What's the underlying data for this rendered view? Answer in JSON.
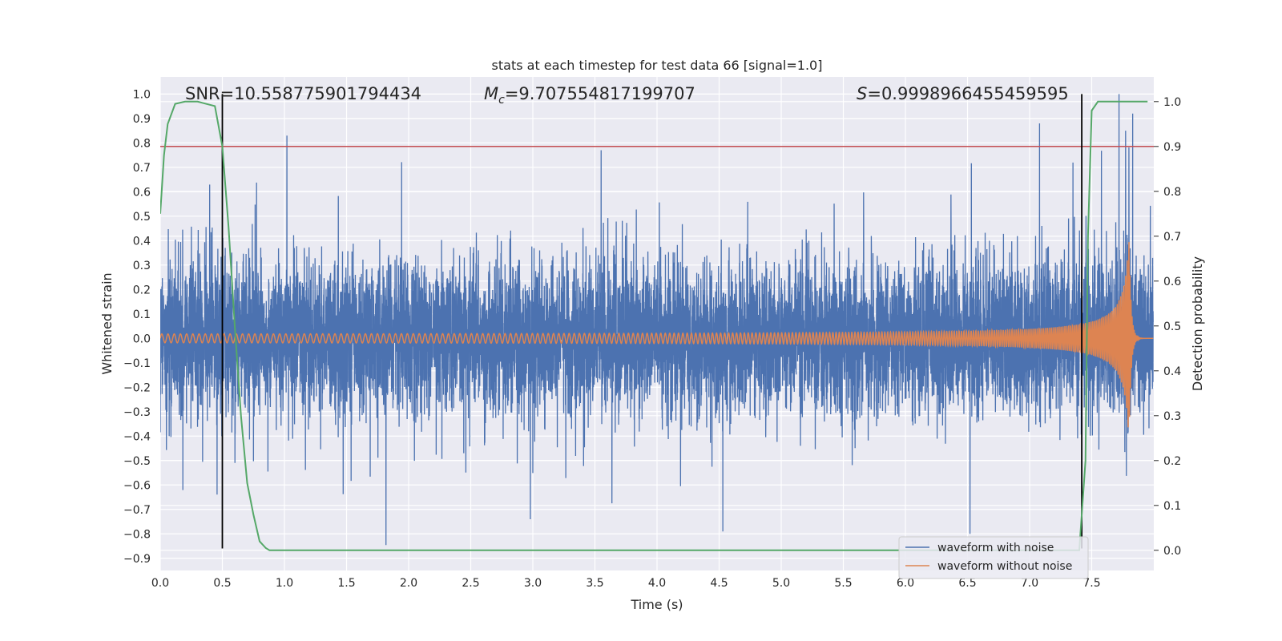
{
  "chart_data": {
    "type": "line",
    "title": "stats at each timestep for test data 66 [signal=1.0]",
    "xlabel": "Time (s)",
    "ylabel_left": "Whitened strain",
    "ylabel_right": "Detection probability",
    "xlim": [
      0.0,
      8.0
    ],
    "ylim_left": [
      -0.95,
      1.07
    ],
    "ylim_right": [
      -0.045,
      1.055
    ],
    "x_ticks": [
      "0.0",
      "0.5",
      "1.0",
      "1.5",
      "2.0",
      "2.5",
      "3.0",
      "3.5",
      "4.0",
      "4.5",
      "5.0",
      "5.5",
      "6.0",
      "6.5",
      "7.0",
      "7.5"
    ],
    "y_ticks_left": [
      "1.0",
      "0.9",
      "0.8",
      "0.7",
      "0.6",
      "0.5",
      "0.4",
      "0.3",
      "0.2",
      "0.1",
      "0.0",
      "-0.1",
      "-0.2",
      "-0.3",
      "-0.4",
      "-0.5",
      "-0.6",
      "-0.7",
      "-0.8",
      "-0.9"
    ],
    "y_ticks_right": [
      "1.0",
      "0.9",
      "0.8",
      "0.7",
      "0.6",
      "0.5",
      "0.4",
      "0.3",
      "0.2",
      "0.1",
      "0.0"
    ],
    "grid": true,
    "legend_position": "bottom-right",
    "annotations": {
      "snr": "SNR=10.558775901794434",
      "mc_symbol": "M",
      "mc_subscript": "c",
      "mc_value": "=9.707554817199707",
      "s_symbol": "S",
      "s_value": "=0.9998966455459595"
    },
    "series": [
      {
        "name": "waveform with noise",
        "color": "#4c72b0",
        "axis": "left",
        "envelope": {
          "typical_amplitude": 0.3,
          "max_amplitude": 0.9
        },
        "peaks": [
          {
            "x": 1.02,
            "y": 0.83
          },
          {
            "x": 3.55,
            "y": 0.77
          },
          {
            "x": 7.08,
            "y": 0.88
          },
          {
            "x": 7.72,
            "y": 1.0
          },
          {
            "x": 7.83,
            "y": 0.92
          },
          {
            "x": 2.98,
            "y": -0.74
          },
          {
            "x": 4.53,
            "y": -0.79
          },
          {
            "x": 6.52,
            "y": -0.8
          }
        ]
      },
      {
        "name": "waveform without noise",
        "color": "#dd8452",
        "axis": "left",
        "chirp": {
          "start_amplitude": 0.015,
          "end_amplitude": 0.43,
          "merger_time": 7.8,
          "start_frequency_hz": 20,
          "end_frequency_hz": 75
        }
      },
      {
        "name": "",
        "color": "#55a868",
        "axis": "right",
        "x": [
          0.0,
          0.03,
          0.06,
          0.12,
          0.2,
          0.3,
          0.44,
          0.5,
          0.55,
          0.6,
          0.65,
          0.7,
          0.75,
          0.8,
          0.85,
          0.88,
          1.0,
          2.0,
          3.0,
          4.0,
          5.0,
          6.0,
          7.0,
          7.4,
          7.45,
          7.47,
          7.5,
          7.55,
          7.95
        ],
        "y": [
          0.75,
          0.88,
          0.95,
          0.995,
          1.0,
          1.0,
          0.99,
          0.9,
          0.72,
          0.5,
          0.3,
          0.15,
          0.08,
          0.02,
          0.005,
          0.0,
          0.0,
          0.0,
          0.0,
          0.0,
          0.0,
          0.0,
          0.0,
          0.0,
          0.2,
          0.7,
          0.98,
          1.0,
          1.0
        ]
      }
    ],
    "threshold_line": {
      "color": "#c44e52",
      "axis": "right",
      "y": 0.9
    },
    "vertical_markers": [
      {
        "x": 0.5,
        "y_from": -0.86,
        "y_to": 1.0,
        "color": "#000000"
      },
      {
        "x": 7.42,
        "y_from": -0.86,
        "y_to": 1.0,
        "color": "#000000"
      }
    ],
    "legend": [
      {
        "label": "waveform with noise",
        "color": "#4c72b0"
      },
      {
        "label": "waveform without noise",
        "color": "#dd8452"
      }
    ]
  }
}
